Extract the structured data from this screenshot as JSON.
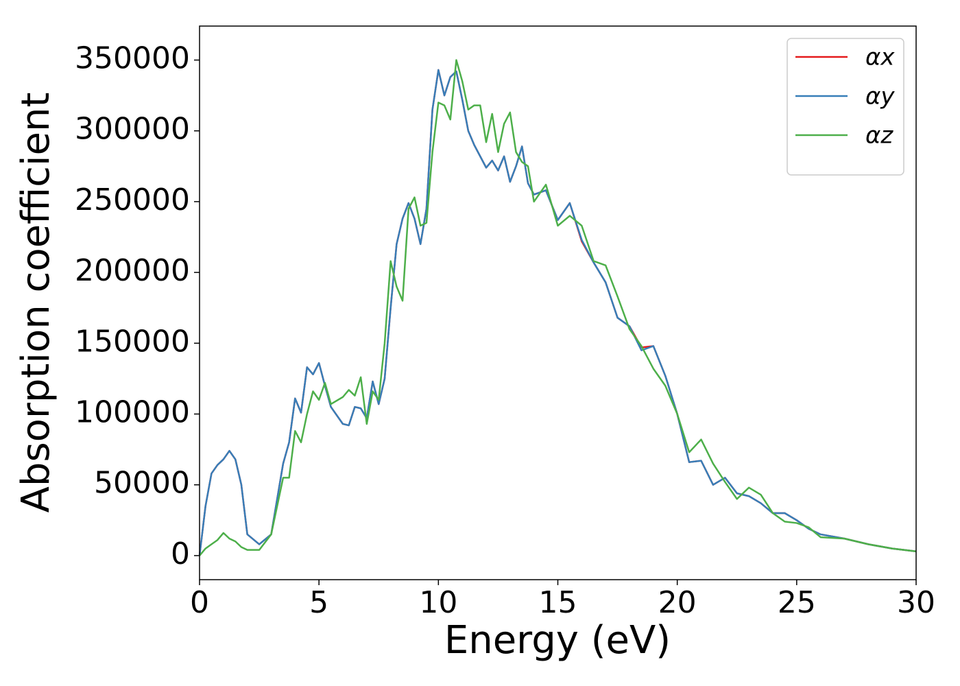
{
  "chart_data": {
    "type": "line",
    "xlabel": "Energy (eV)",
    "ylabel": "Absorption coefficient",
    "x": [
      0,
      0.25,
      0.5,
      0.75,
      1,
      1.25,
      1.5,
      1.75,
      2,
      2.5,
      3,
      3.5,
      3.75,
      4,
      4.25,
      4.5,
      4.75,
      5,
      5.25,
      5.5,
      6,
      6.25,
      6.5,
      6.75,
      7,
      7.25,
      7.5,
      7.75,
      8,
      8.25,
      8.5,
      8.75,
      9,
      9.25,
      9.5,
      9.75,
      10,
      10.25,
      10.5,
      10.75,
      11,
      11.25,
      11.5,
      11.75,
      12,
      12.25,
      12.5,
      12.75,
      13,
      13.25,
      13.5,
      13.75,
      14,
      14.5,
      15,
      15.5,
      16,
      16.5,
      17,
      17.5,
      18,
      18.5,
      19,
      19.5,
      20,
      20.5,
      21,
      21.5,
      22,
      22.5,
      23,
      23.5,
      24,
      24.5,
      25,
      25.5,
      26,
      27,
      28,
      29,
      30
    ],
    "series": [
      {
        "name": "αx",
        "color": "#e41a1c",
        "values": [
          0,
          35000,
          58000,
          64000,
          68000,
          74000,
          68000,
          50000,
          15000,
          8000,
          15000,
          65000,
          80000,
          111000,
          101000,
          133000,
          128000,
          136000,
          120000,
          105000,
          93000,
          92000,
          105000,
          104000,
          97000,
          123000,
          107000,
          125000,
          175000,
          220000,
          238000,
          249000,
          238000,
          220000,
          245000,
          315000,
          343000,
          325000,
          338000,
          342000,
          322000,
          300000,
          290000,
          282000,
          274000,
          279000,
          272000,
          282000,
          264000,
          275000,
          289000,
          263000,
          255000,
          258000,
          237000,
          249000,
          222000,
          207000,
          193000,
          168000,
          162000,
          147000,
          148000,
          127000,
          100000,
          66000,
          67000,
          50000,
          55000,
          44000,
          42000,
          37000,
          30000,
          30000,
          25000,
          19000,
          15000,
          12000,
          8000,
          5000,
          3000
        ]
      },
      {
        "name": "αy",
        "color": "#377eb8",
        "values": [
          0,
          35000,
          58000,
          64000,
          68000,
          74000,
          68000,
          50000,
          15000,
          8000,
          15000,
          65000,
          80000,
          111000,
          101000,
          133000,
          128000,
          136000,
          120000,
          105000,
          93000,
          92000,
          105000,
          104000,
          97000,
          123000,
          107000,
          125000,
          175000,
          220000,
          238000,
          249000,
          238000,
          220000,
          245000,
          315000,
          343000,
          325000,
          338000,
          342000,
          322000,
          300000,
          290000,
          282000,
          274000,
          279000,
          272000,
          282000,
          264000,
          275000,
          289000,
          263000,
          255000,
          258000,
          237000,
          249000,
          223000,
          207000,
          193000,
          168000,
          162000,
          145000,
          148000,
          127000,
          100000,
          66000,
          67000,
          50000,
          55000,
          44000,
          42000,
          37000,
          30000,
          30000,
          25000,
          19000,
          15000,
          12000,
          8000,
          5000,
          3000
        ]
      },
      {
        "name": "αz",
        "color": "#4daf4a",
        "values": [
          0,
          5000,
          8000,
          11000,
          16000,
          12000,
          10000,
          6000,
          4000,
          4000,
          15000,
          55000,
          55000,
          88000,
          80000,
          100000,
          116000,
          110000,
          122000,
          107000,
          112000,
          117000,
          113000,
          126000,
          93000,
          116000,
          110000,
          150000,
          208000,
          190000,
          180000,
          245000,
          253000,
          233000,
          235000,
          285000,
          320000,
          318000,
          308000,
          350000,
          335000,
          315000,
          318000,
          318000,
          292000,
          312000,
          285000,
          305000,
          313000,
          285000,
          278000,
          275000,
          250000,
          262000,
          233000,
          240000,
          233000,
          208000,
          205000,
          183000,
          160000,
          148000,
          132000,
          120000,
          100000,
          73000,
          82000,
          65000,
          52000,
          40000,
          48000,
          43000,
          30000,
          24000,
          23000,
          20000,
          13000,
          12000,
          8000,
          5000,
          3000
        ]
      }
    ],
    "xlim": [
      0,
      30
    ],
    "xticks": [
      0,
      5,
      10,
      15,
      20,
      25,
      30
    ],
    "ylim": [
      -17000,
      374000
    ],
    "yticks": [
      0,
      50000,
      100000,
      150000,
      200000,
      250000,
      300000,
      350000
    ],
    "legend": "upper right"
  }
}
